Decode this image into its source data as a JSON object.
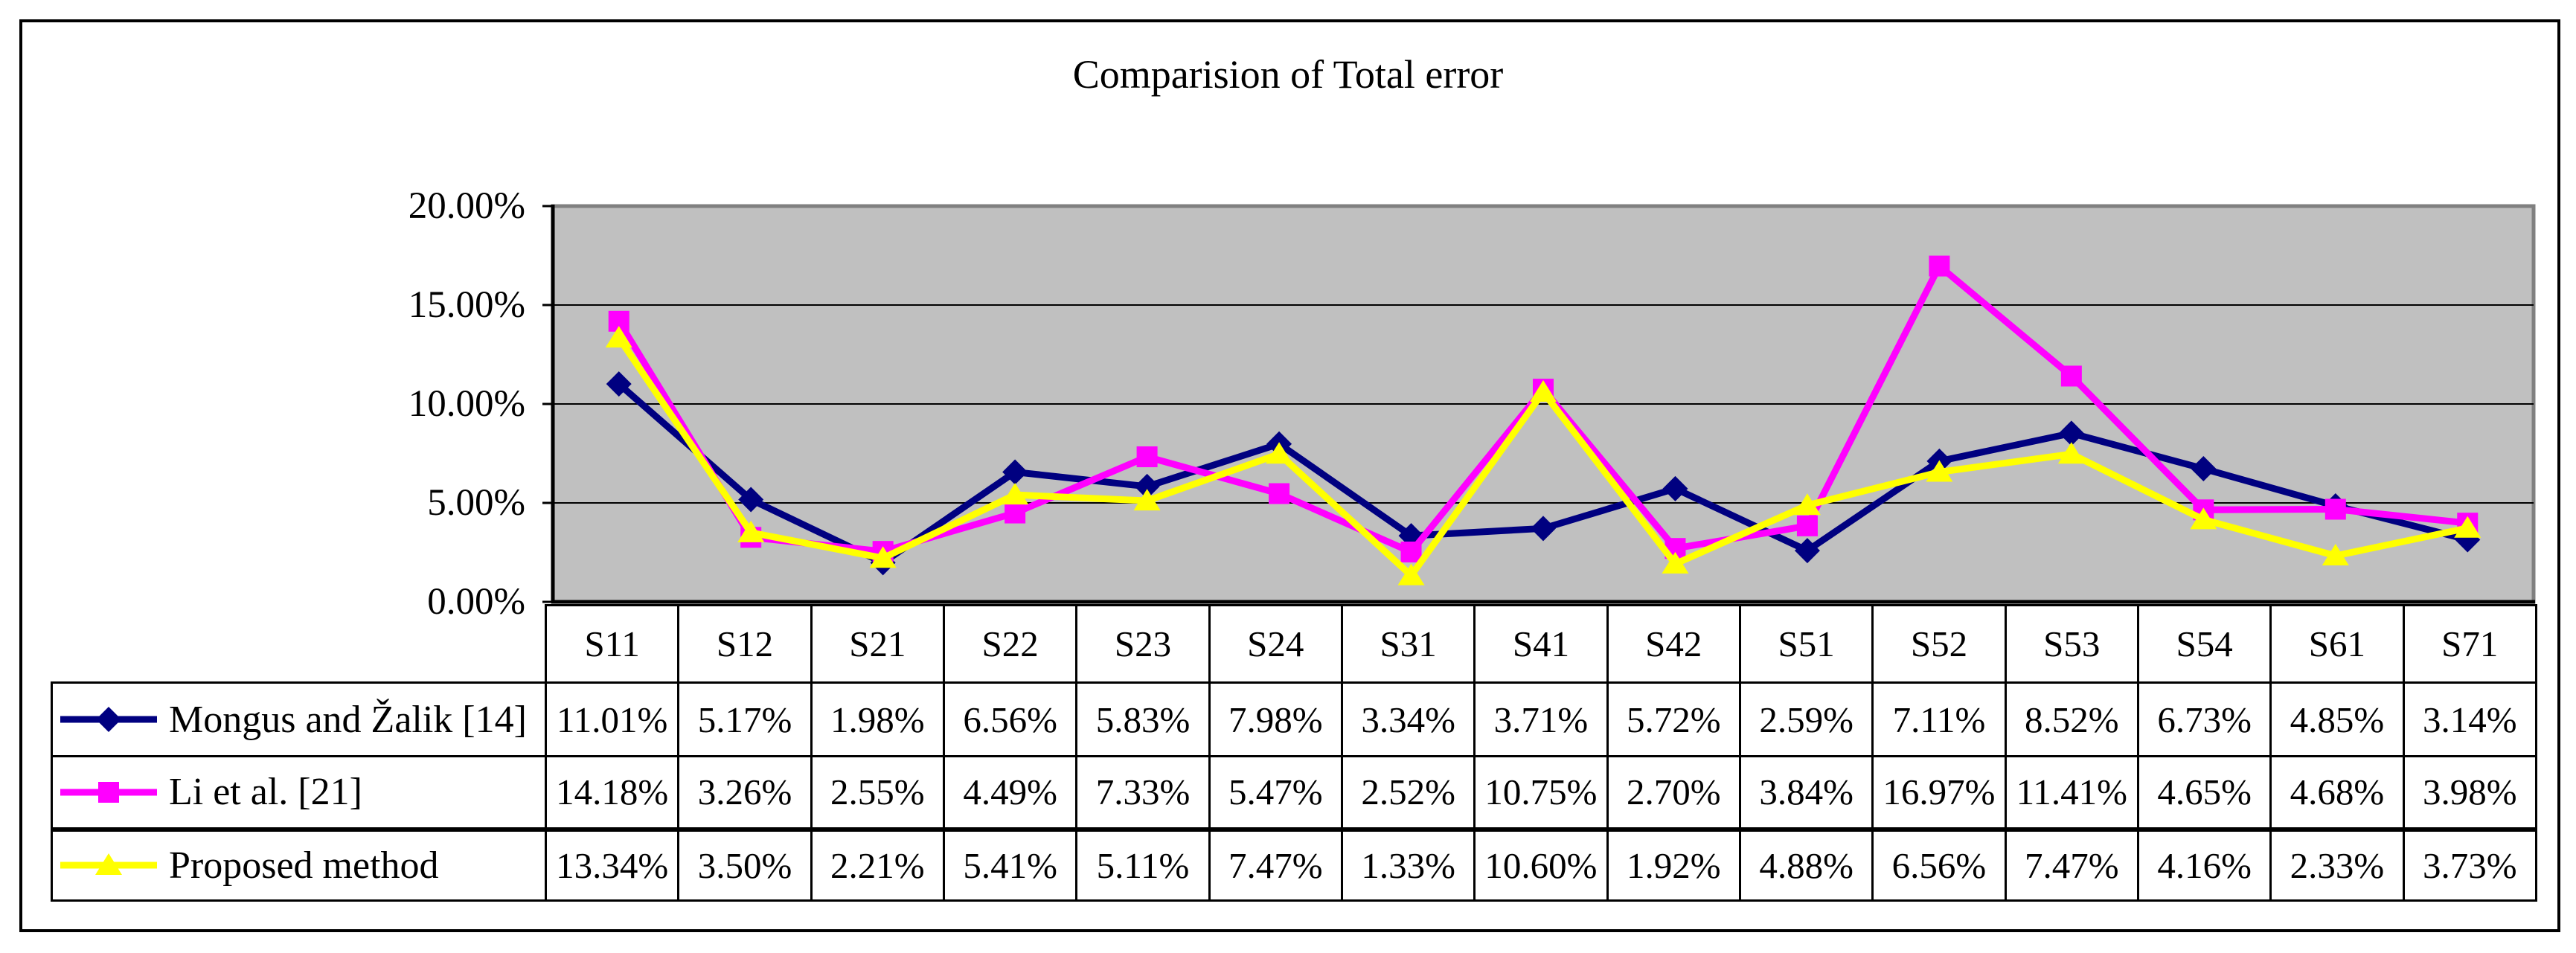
{
  "chart_data": {
    "type": "line",
    "title": "Comparision of Total error",
    "categories": [
      "S11",
      "S12",
      "S21",
      "S22",
      "S23",
      "S24",
      "S31",
      "S41",
      "S42",
      "S51",
      "S52",
      "S53",
      "S54",
      "S61",
      "S71"
    ],
    "series": [
      {
        "name": "Mongus and Žalik [14]",
        "marker": "diamond",
        "color": "#000080",
        "values": [
          11.01,
          5.17,
          1.98,
          6.56,
          5.83,
          7.98,
          3.34,
          3.71,
          5.72,
          2.59,
          7.11,
          8.52,
          6.73,
          4.85,
          3.14
        ],
        "labels": [
          "11.01%",
          "5.17%",
          "1.98%",
          "6.56%",
          "5.83%",
          "7.98%",
          "3.34%",
          "3.71%",
          "5.72%",
          "2.59%",
          "7.11%",
          "8.52%",
          "6.73%",
          "4.85%",
          "3.14%"
        ]
      },
      {
        "name": "Li et al. [21]",
        "marker": "square",
        "color": "#FF00FF",
        "values": [
          14.18,
          3.26,
          2.55,
          4.49,
          7.33,
          5.47,
          2.52,
          10.75,
          2.7,
          3.84,
          16.97,
          11.41,
          4.65,
          4.68,
          3.98
        ],
        "labels": [
          "14.18%",
          "3.26%",
          "2.55%",
          "4.49%",
          "7.33%",
          "5.47%",
          "2.52%",
          "10.75%",
          "2.70%",
          "3.84%",
          "16.97%",
          "11.41%",
          "4.65%",
          "4.68%",
          "3.98%"
        ]
      },
      {
        "name": "Proposed method",
        "marker": "triangle",
        "color": "#FFFF00",
        "values": [
          13.34,
          3.5,
          2.21,
          5.41,
          5.11,
          7.47,
          1.33,
          10.6,
          1.92,
          4.88,
          6.56,
          7.47,
          4.16,
          2.33,
          3.73
        ],
        "labels": [
          "13.34%",
          "3.50%",
          "2.21%",
          "5.41%",
          "5.11%",
          "7.47%",
          "1.33%",
          "10.60%",
          "1.92%",
          "4.88%",
          "6.56%",
          "7.47%",
          "4.16%",
          "2.33%",
          "3.73%"
        ]
      }
    ],
    "ylim": [
      0,
      20
    ],
    "yticks": [
      "20.00%",
      "15.00%",
      "10.00%",
      "5.00%",
      "0.00%"
    ],
    "grid": true,
    "plot_bg": "#C0C0C0",
    "plot_border_color": "#808080",
    "axis_color": "#000000",
    "gridline_color": "#000000",
    "legend_position": "table-left-column"
  }
}
